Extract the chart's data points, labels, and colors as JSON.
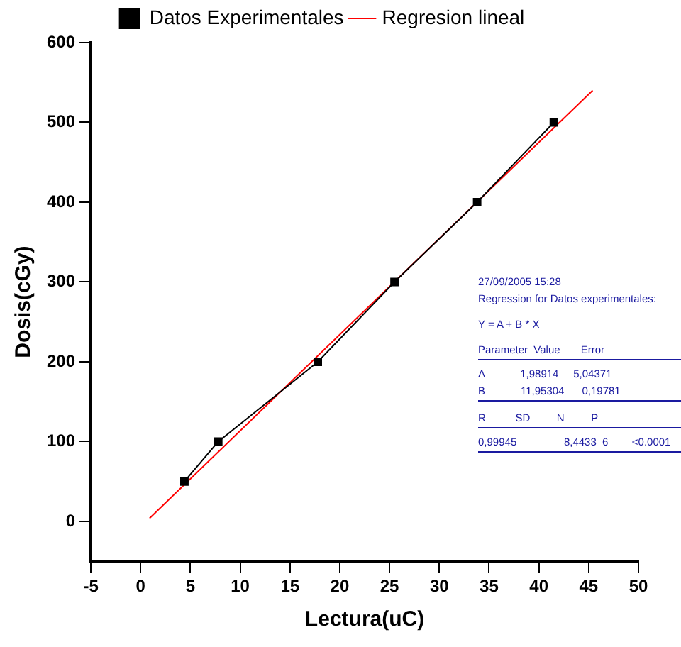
{
  "chart_data": {
    "type": "line",
    "xlabel": "Lectura(uC)",
    "ylabel": "Dosis(cGy)",
    "xlim": [
      -5,
      50
    ],
    "xticks": [
      -5,
      0,
      5,
      10,
      15,
      20,
      25,
      30,
      35,
      40,
      45,
      50
    ],
    "ylim": [
      -50,
      600
    ],
    "yticks": [
      0,
      100,
      200,
      300,
      400,
      500,
      600
    ],
    "grid": false,
    "legend": "top",
    "line_style": "solid",
    "series": [
      {
        "name": "Datos Experimentales",
        "marker": "square",
        "color": "#000000",
        "x": [
          4.4,
          7.8,
          17.8,
          25.5,
          33.8,
          41.5
        ],
        "values": [
          50,
          100,
          200,
          300,
          400,
          500
        ]
      },
      {
        "name": "Regresion lineal",
        "marker": "none",
        "color": "#ff0000",
        "x": [
          0.9,
          45.4
        ],
        "values": [
          4,
          540
        ]
      }
    ],
    "annotations": [
      "27/09/2005 15:28",
      "Regression for Datos experimentales:",
      "Y = A + B * X",
      "Parameter  Value       Error",
      "A            1,98914     5,04371",
      "B            11,95304      0,19781",
      "R          SD         N         P",
      "0,99945                8,4433  6        <0.0001"
    ]
  }
}
